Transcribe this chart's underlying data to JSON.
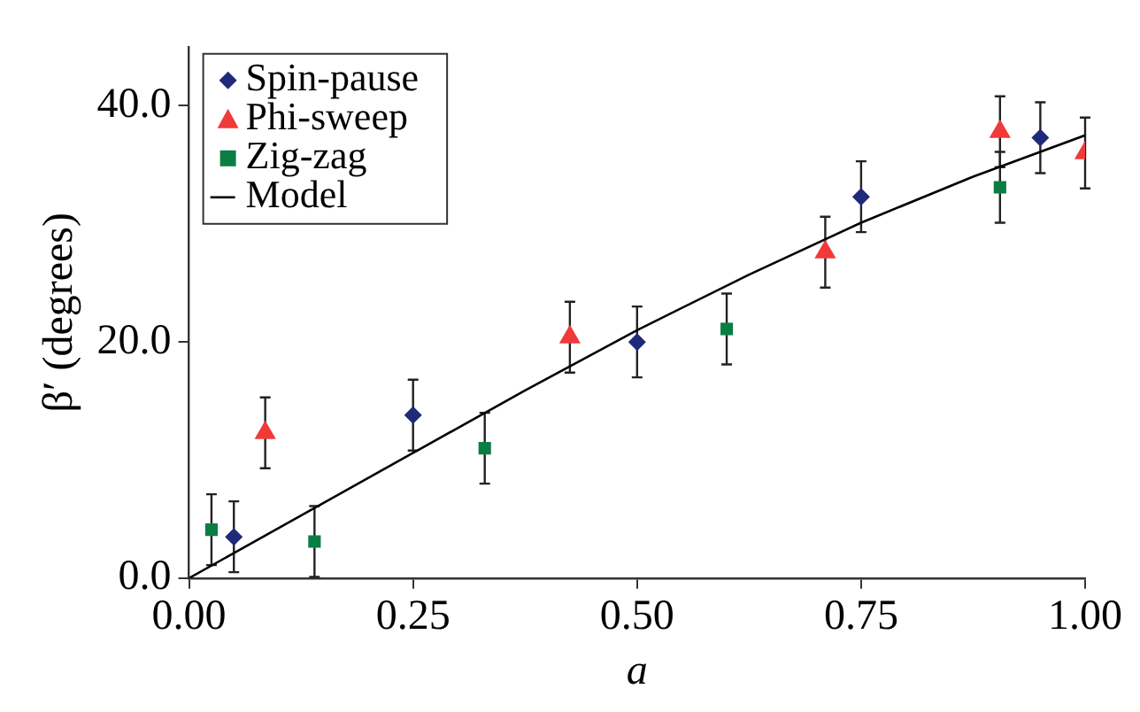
{
  "chart_data": {
    "type": "scatter",
    "xlabel": "a",
    "ylabel": "β′ (degrees)",
    "xlim": [
      0,
      1
    ],
    "xticks": [
      {
        "value": 0,
        "label": "0.00"
      },
      {
        "value": 0.25,
        "label": "0.25"
      },
      {
        "value": 0.5,
        "label": "0.50"
      },
      {
        "value": 0.75,
        "label": "0.75"
      },
      {
        "value": 1,
        "label": "1.00"
      }
    ],
    "ylim": [
      0,
      45
    ],
    "yticks": [
      {
        "value": 0,
        "label": "0.0"
      },
      {
        "value": 20,
        "label": "20.0"
      },
      {
        "value": 40,
        "label": "40.0"
      }
    ],
    "grid": false,
    "legend": "top left",
    "series": [
      {
        "name": "Spin-pause",
        "color": "#1f2a7a",
        "marker": "diamond",
        "x": [
          0.05,
          0.25,
          0.5,
          0.75,
          0.95
        ],
        "values": [
          3.5,
          13.8,
          20,
          32.3,
          37.3
        ],
        "errors": [
          3,
          3,
          3,
          3,
          3
        ]
      },
      {
        "name": "Phi-sweep",
        "color": "#f03a3a",
        "marker": "triangle",
        "x": [
          0.085,
          0.425,
          0.71,
          0.905,
          1.0
        ],
        "values": [
          12.3,
          20.4,
          27.6,
          37.8,
          36
        ],
        "errors": [
          3,
          3,
          3,
          3,
          3
        ]
      },
      {
        "name": "Zig-zag",
        "color": "#0a7d45",
        "marker": "square",
        "x": [
          0.025,
          0.14,
          0.33,
          0.6,
          0.905
        ],
        "values": [
          4.1,
          3.1,
          11,
          21.1,
          33.1
        ],
        "errors": [
          3,
          3,
          3,
          3,
          3
        ]
      },
      {
        "name": "Model",
        "type": "line",
        "color": "#000000",
        "marker": "none",
        "x": [
          0,
          0.125,
          0.25,
          0.375,
          0.5,
          0.625,
          0.75,
          0.875,
          1
        ],
        "values": [
          0,
          5.3,
          10.6,
          15.9,
          21,
          25.7,
          30.1,
          34,
          37.5
        ]
      }
    ]
  }
}
